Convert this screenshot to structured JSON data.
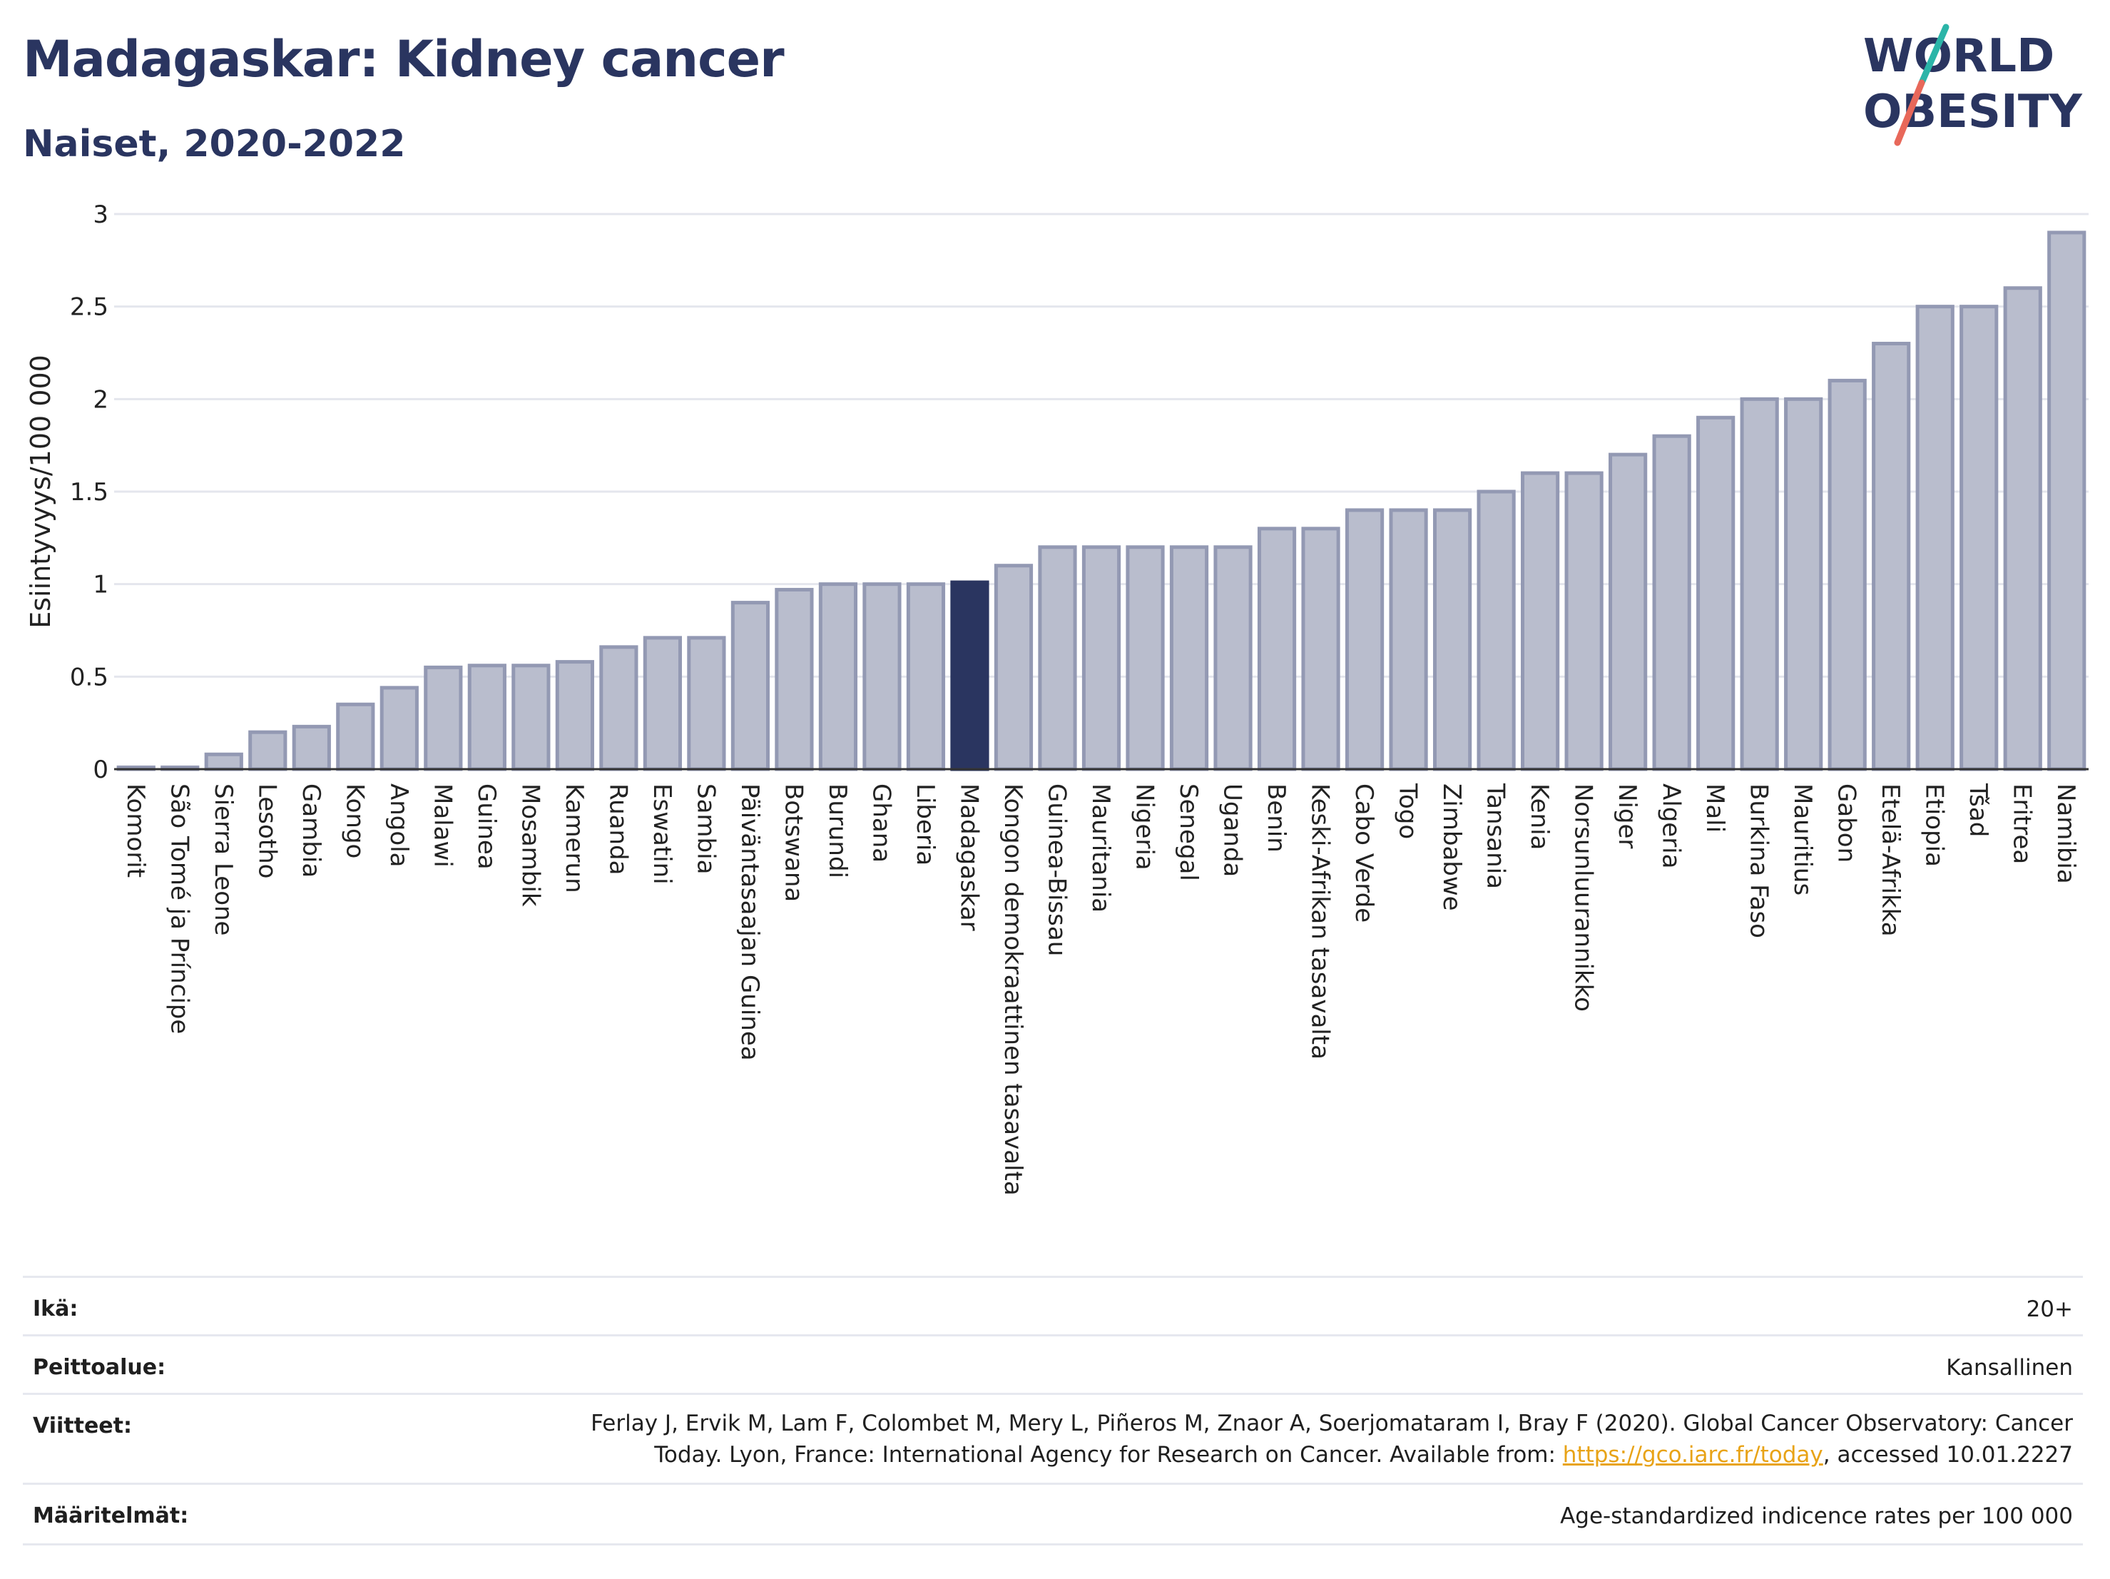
{
  "header": {
    "title": "Madagaskar: Kidney cancer",
    "subtitle": "Naiset, 2020-2022"
  },
  "logo": {
    "line1": "WORLD",
    "line2": "OBESITY",
    "accent_teal": "#2bb5a8",
    "accent_coral": "#e8685a",
    "text_color": "#2a3560"
  },
  "chart_data": {
    "type": "bar",
    "ylabel": "Esiintyvyys/100 000",
    "ylim": [
      0,
      3
    ],
    "yticks": [
      0,
      0.5,
      1,
      1.5,
      2,
      2.5,
      3
    ],
    "ytick_labels": [
      "0",
      "0.5",
      "1",
      "1.5",
      "2",
      "2.5",
      "3"
    ],
    "grid": true,
    "highlight": "Madagaskar",
    "colors": {
      "bar": "#b9bdcd",
      "bar_border": "#9399b3",
      "highlight": "#2a3560"
    },
    "categories": [
      "Komorit",
      "São Tomé ja Príncipe",
      "Sierra Leone",
      "Lesotho",
      "Gambia",
      "Kongo",
      "Angola",
      "Malawi",
      "Guinea",
      "Mosambik",
      "Kamerun",
      "Ruanda",
      "Eswatini",
      "Sambia",
      "Päiväntasaajan Guinea",
      "Botswana",
      "Burundi",
      "Ghana",
      "Liberia",
      "Madagaskar",
      "Kongon demokraattinen tasavalta",
      "Guinea-Bissau",
      "Mauritania",
      "Nigeria",
      "Senegal",
      "Uganda",
      "Benin",
      "Keski-Afrikan tasavalta",
      "Cabo Verde",
      "Togo",
      "Zimbabwe",
      "Tansania",
      "Kenia",
      "Norsunluurannikko",
      "Niger",
      "Algeria",
      "Mali",
      "Burkina Faso",
      "Mauritius",
      "Gabon",
      "Etelä-Afrikka",
      "Etiopia",
      "Tšad",
      "Eritrea",
      "Namibia"
    ],
    "values": [
      0.01,
      0.01,
      0.08,
      0.2,
      0.23,
      0.35,
      0.44,
      0.55,
      0.56,
      0.56,
      0.58,
      0.66,
      0.71,
      0.71,
      0.9,
      0.97,
      1.0,
      1.0,
      1.0,
      1.01,
      1.1,
      1.2,
      1.2,
      1.2,
      1.2,
      1.2,
      1.3,
      1.3,
      1.4,
      1.4,
      1.4,
      1.5,
      1.6,
      1.6,
      1.7,
      1.8,
      1.9,
      2.0,
      2.0,
      2.1,
      2.3,
      2.5,
      2.5,
      2.6,
      2.9
    ]
  },
  "info": {
    "age_label": "Ikä:",
    "age_value": "20+",
    "coverage_label": "Peittoalue:",
    "coverage_value": "Kansallinen",
    "refs_label": "Viitteet:",
    "refs_line1": "Ferlay J, Ervik M, Lam F, Colombet M, Mery L, Piñeros M, Znaor A, Soerjomataram I, Bray F (2020). Global Cancer Observatory: Cancer",
    "refs_line2_pre": "Today. Lyon, France: International Agency for Research on Cancer. Available from: ",
    "refs_link": "https://gco.iarc.fr/today",
    "refs_line2_post": ", accessed 10.01.2227",
    "defs_label": "Määritelmät:",
    "defs_value": "Age-standardized indicence rates per 100 000"
  }
}
